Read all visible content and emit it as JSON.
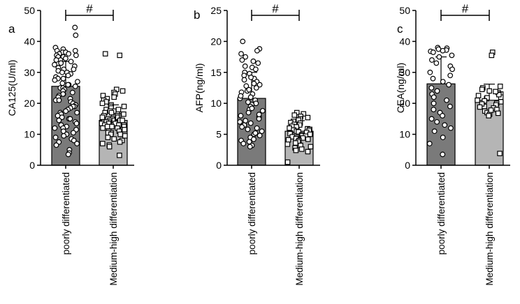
{
  "chart_data": [
    {
      "type": "bar",
      "panel_label": "a",
      "ylabel": "CA125(U/ml)",
      "xlabel": "",
      "ylim": [
        0,
        50
      ],
      "yticks": [
        0,
        10,
        20,
        30,
        40,
        50
      ],
      "categories": [
        "poorly differentiated",
        "Medium-high differentiation"
      ],
      "values": [
        25.5,
        14.5
      ],
      "error_upper": [
        33.5,
        19.5
      ],
      "significance": "#",
      "bar_colors": [
        "#7a7a7a",
        "#b5b5b5"
      ],
      "points": [
        [
          44.5,
          42,
          38,
          37.5,
          37,
          37,
          36.5,
          36.5,
          36,
          36,
          35.5,
          35.5,
          35,
          35,
          34.5,
          34,
          34,
          33.5,
          33,
          33,
          32.5,
          32,
          31.5,
          31,
          31,
          30.5,
          30,
          30,
          29.5,
          29,
          28.5,
          28,
          28,
          27.5,
          27,
          26.5,
          26,
          26,
          25.5,
          25,
          25,
          24.5,
          24,
          23.5,
          23,
          23,
          22.5,
          22,
          21.5,
          21,
          21,
          20.5,
          20,
          19.5,
          19,
          19,
          18.5,
          18,
          17.5,
          17,
          17,
          16.5,
          16,
          15.5,
          15,
          15,
          14.5,
          14,
          13.5,
          13,
          12.5,
          12,
          12,
          11.5,
          11,
          10.5,
          10,
          9.5,
          9,
          8.5,
          8,
          7.5,
          7,
          6.5,
          5,
          4,
          3.5
        ],
        [
          36,
          35.5,
          24.5,
          24,
          23.5,
          23,
          22.5,
          22,
          21.5,
          21,
          20.5,
          20,
          19.5,
          19,
          19,
          18.5,
          18,
          18,
          17.5,
          17.5,
          17,
          17,
          16.5,
          16.5,
          16,
          16,
          16,
          15.5,
          15.5,
          15.5,
          15,
          15,
          15,
          15,
          14.5,
          14.5,
          14.5,
          14.5,
          14,
          14,
          14,
          14,
          13.5,
          13.5,
          13.5,
          13,
          13,
          13,
          12.5,
          12.5,
          12.5,
          12,
          12,
          11.5,
          11.5,
          11,
          11,
          10.5,
          10.5,
          10,
          10,
          9.5,
          9,
          8.5,
          8,
          7.5,
          7,
          6.5,
          6,
          3.2
        ]
      ]
    },
    {
      "type": "bar",
      "panel_label": "b",
      "ylabel": "AFP(ng/ml)",
      "xlabel": "",
      "ylim": [
        0,
        25
      ],
      "yticks": [
        0,
        5,
        10,
        15,
        20,
        25
      ],
      "categories": [
        "poorly differentiated",
        "Medium-high differentiation"
      ],
      "values": [
        10.8,
        5.5
      ],
      "error_upper": [
        15,
        7.2
      ],
      "significance": "#",
      "bar_colors": [
        "#7a7a7a",
        "#b5b5b5"
      ],
      "points": [
        [
          20,
          18.8,
          18.5,
          18,
          17.5,
          17,
          16.5,
          16,
          15.8,
          15.5,
          15,
          14.8,
          14.5,
          14,
          13.8,
          13.5,
          13,
          12.8,
          12.5,
          12,
          11.8,
          11.5,
          11,
          10.8,
          10.5,
          10,
          9.8,
          9.5,
          9,
          8.8,
          8.5,
          8,
          7.8,
          7.5,
          7,
          6.8,
          6.5,
          6,
          5.8,
          5.5,
          5,
          4.8,
          4.5,
          4,
          3.8,
          3.5,
          3.2,
          3,
          14.2,
          12.2,
          10.2,
          8.2,
          6.2,
          16.8,
          13.2,
          11.2,
          9.2,
          7.2,
          5.2,
          4.2
        ],
        [
          8.5,
          8.3,
          8.1,
          7.9,
          7.7,
          7.5,
          7.3,
          7.1,
          6.9,
          6.8,
          6.6,
          6.5,
          6.3,
          6.2,
          6,
          5.9,
          5.8,
          5.7,
          5.6,
          5.5,
          5.4,
          5.3,
          5.2,
          5.1,
          5,
          4.9,
          4.8,
          4.7,
          4.6,
          4.5,
          4.4,
          4.3,
          4.2,
          4.1,
          4,
          3.8,
          3.6,
          3.4,
          3.2,
          3,
          2.8,
          2.6,
          2.4,
          2.2,
          0.5
        ]
      ]
    },
    {
      "type": "bar",
      "panel_label": "c",
      "ylabel": "CEA(ng/ml)",
      "xlabel": "",
      "ylim": [
        0,
        50
      ],
      "yticks": [
        0,
        10,
        20,
        30,
        40,
        50
      ],
      "categories": [
        "poorly differentiated",
        "Medium-high differentiation"
      ],
      "values": [
        26.3,
        21
      ],
      "error_upper": [
        35,
        26.2
      ],
      "significance": "#",
      "bar_colors": [
        "#7a7a7a",
        "#b5b5b5"
      ],
      "points": [
        [
          38,
          37.8,
          37.5,
          37.2,
          37,
          36.8,
          36.5,
          35.5,
          35,
          34,
          33,
          32,
          31,
          30,
          29,
          28,
          27,
          26,
          25,
          24,
          23,
          22,
          21,
          20,
          19,
          18,
          17,
          16,
          15,
          14,
          13,
          12,
          11,
          9,
          7,
          3.5
        ],
        [
          36.5,
          35.5,
          25.5,
          25,
          24.5,
          24,
          23.5,
          23,
          22.5,
          22,
          21.5,
          21,
          20.5,
          20,
          19.5,
          19,
          18.5,
          18,
          17.5,
          17,
          16.5,
          16,
          21.8,
          20.8,
          19.8,
          18.8,
          17.8,
          16.8,
          22.8,
          23.8,
          3.8
        ]
      ]
    }
  ]
}
